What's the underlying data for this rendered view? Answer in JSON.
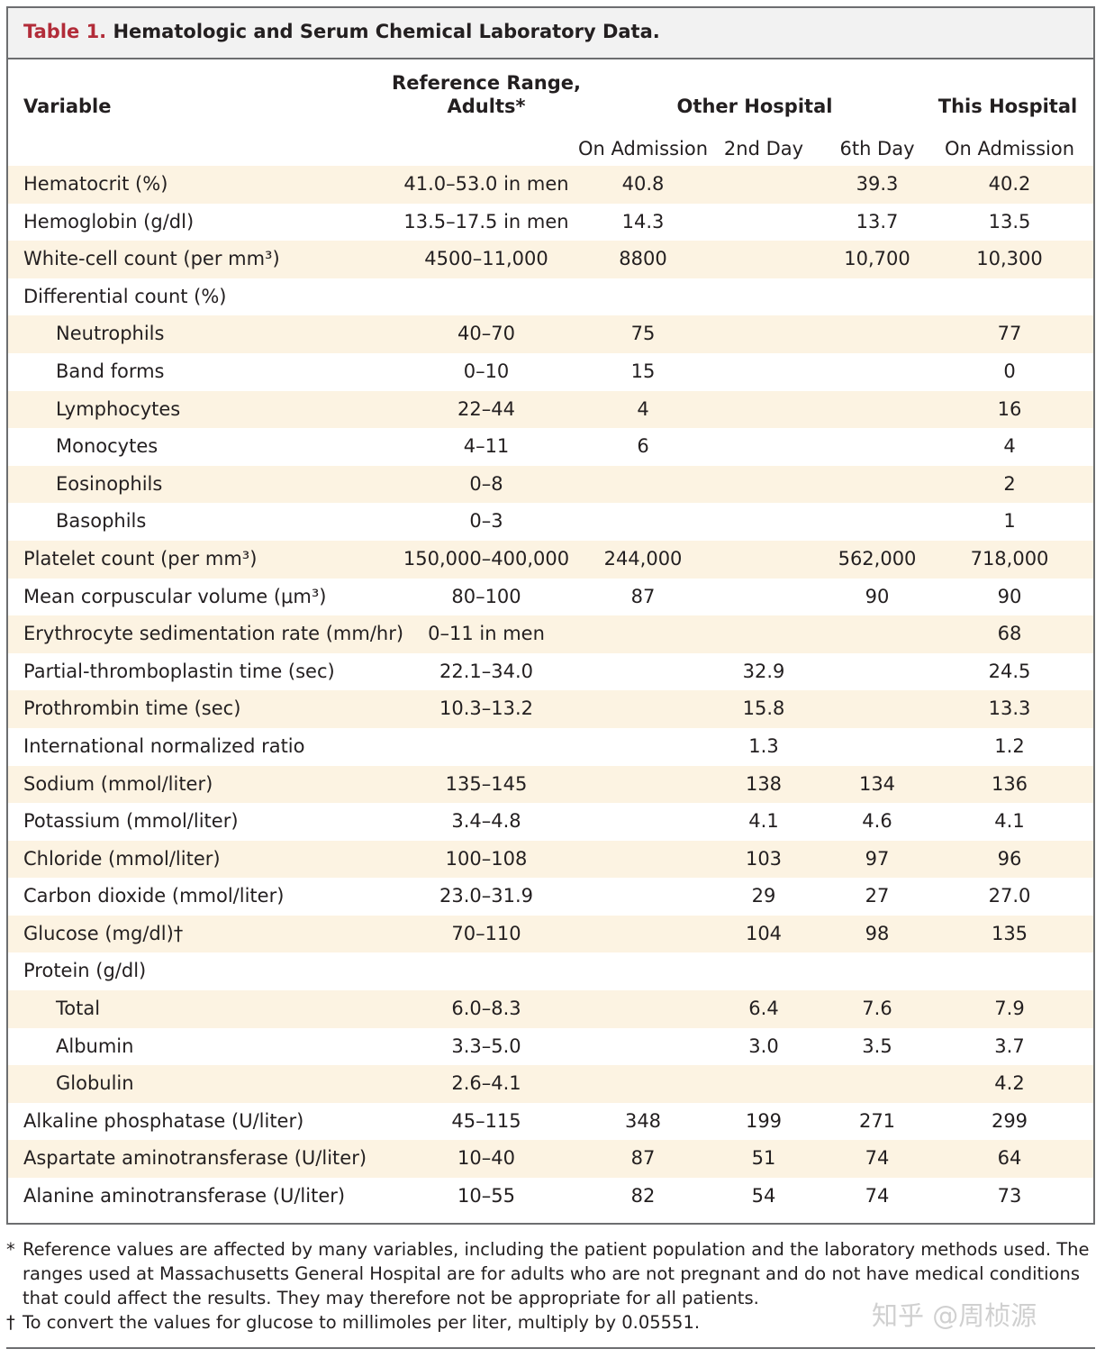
{
  "title": {
    "label": "Table 1.",
    "text": "Hematologic and Serum Chemical Laboratory Data."
  },
  "headers": {
    "variable": "Variable",
    "reference_line1": "Reference Range,",
    "reference_line2": "Adults*",
    "other_hospital": "Other Hospital",
    "this_hospital": "This Hospital",
    "on_admission": "On Admission",
    "second_day": "2nd Day",
    "sixth_day": "6th Day",
    "this_on_admission": "On Admission"
  },
  "rows": [
    {
      "variable": "Hematocrit (%)",
      "ref": "41.0–53.0 in men",
      "adm": "40.8",
      "d2": "",
      "d6": "39.3",
      "th": "40.2"
    },
    {
      "variable": "Hemoglobin (g/dl)",
      "ref": "13.5–17.5 in men",
      "adm": "14.3",
      "d2": "",
      "d6": "13.7",
      "th": "13.5"
    },
    {
      "variable": "White-cell count (per mm³)",
      "ref": "4500–11,000",
      "adm": "8800",
      "d2": "",
      "d6": "10,700",
      "th": "10,300"
    },
    {
      "variable": "Differential count (%)",
      "ref": "",
      "adm": "",
      "d2": "",
      "d6": "",
      "th": ""
    },
    {
      "variable": "Neutrophils",
      "ref": "40–70",
      "adm": "75",
      "d2": "",
      "d6": "",
      "th": "77"
    },
    {
      "variable": "Band forms",
      "ref": "0–10",
      "adm": "15",
      "d2": "",
      "d6": "",
      "th": "0"
    },
    {
      "variable": "Lymphocytes",
      "ref": "22–44",
      "adm": "4",
      "d2": "",
      "d6": "",
      "th": "16"
    },
    {
      "variable": "Monocytes",
      "ref": "4–11",
      "adm": "6",
      "d2": "",
      "d6": "",
      "th": "4"
    },
    {
      "variable": "Eosinophils",
      "ref": "0–8",
      "adm": "",
      "d2": "",
      "d6": "",
      "th": "2"
    },
    {
      "variable": "Basophils",
      "ref": "0–3",
      "adm": "",
      "d2": "",
      "d6": "",
      "th": "1"
    },
    {
      "variable": "Platelet count (per mm³)",
      "ref": "150,000–400,000",
      "adm": "244,000",
      "d2": "",
      "d6": "562,000",
      "th": "718,000"
    },
    {
      "variable": "Mean corpuscular volume (μm³)",
      "ref": "80–100",
      "adm": "87",
      "d2": "",
      "d6": "90",
      "th": "90"
    },
    {
      "variable": "Erythrocyte sedimentation rate (mm/hr)",
      "ref": "0–11 in men",
      "adm": "",
      "d2": "",
      "d6": "",
      "th": "68"
    },
    {
      "variable": "Partial-thromboplastin time (sec)",
      "ref": "22.1–34.0",
      "adm": "",
      "d2": "32.9",
      "d6": "",
      "th": "24.5"
    },
    {
      "variable": "Prothrombin time (sec)",
      "ref": "10.3–13.2",
      "adm": "",
      "d2": "15.8",
      "d6": "",
      "th": "13.3"
    },
    {
      "variable": "International normalized ratio",
      "ref": "",
      "adm": "",
      "d2": "1.3",
      "d6": "",
      "th": "1.2"
    },
    {
      "variable": "Sodium (mmol/liter)",
      "ref": "135–145",
      "adm": "",
      "d2": "138",
      "d6": "134",
      "th": "136"
    },
    {
      "variable": "Potassium (mmol/liter)",
      "ref": "3.4–4.8",
      "adm": "",
      "d2": "4.1",
      "d6": "4.6",
      "th": "4.1"
    },
    {
      "variable": "Chloride (mmol/liter)",
      "ref": "100–108",
      "adm": "",
      "d2": "103",
      "d6": "97",
      "th": "96"
    },
    {
      "variable": "Carbon dioxide (mmol/liter)",
      "ref": "23.0–31.9",
      "adm": "",
      "d2": "29",
      "d6": "27",
      "th": "27.0"
    },
    {
      "variable": "Glucose (mg/dl)†",
      "ref": "70–110",
      "adm": "",
      "d2": "104",
      "d6": "98",
      "th": "135"
    },
    {
      "variable": "Protein (g/dl)",
      "ref": "",
      "adm": "",
      "d2": "",
      "d6": "",
      "th": ""
    },
    {
      "variable": "Total",
      "ref": "6.0–8.3",
      "adm": "",
      "d2": "6.4",
      "d6": "7.6",
      "th": "7.9"
    },
    {
      "variable": "Albumin",
      "ref": "3.3–5.0",
      "adm": "",
      "d2": "3.0",
      "d6": "3.5",
      "th": "3.7"
    },
    {
      "variable": "Globulin",
      "ref": "2.6–4.1",
      "adm": "",
      "d2": "",
      "d6": "",
      "th": "4.2"
    },
    {
      "variable": "Alkaline phosphatase (U/liter)",
      "ref": "45–115",
      "adm": "348",
      "d2": "199",
      "d6": "271",
      "th": "299"
    },
    {
      "variable": "Aspartate aminotransferase (U/liter)",
      "ref": "10–40",
      "adm": "87",
      "d2": "51",
      "d6": "74",
      "th": "64"
    },
    {
      "variable": "Alanine aminotransferase (U/liter)",
      "ref": "10–55",
      "adm": "82",
      "d2": "54",
      "d6": "74",
      "th": "73"
    }
  ],
  "footnotes": [
    {
      "mark": "*",
      "text": "Reference values are affected by many variables, including the patient population and the laboratory methods used. The ranges used at Massachusetts General Hospital are for adults who are not pregnant and do not have medical conditions that could affect the results. They may therefore not be appropriate for all patients."
    },
    {
      "mark": "†",
      "text": "To convert the values for glucose to millimoles per liter, multiply by 0.05551."
    }
  ],
  "watermark": "知乎 @周桢源"
}
